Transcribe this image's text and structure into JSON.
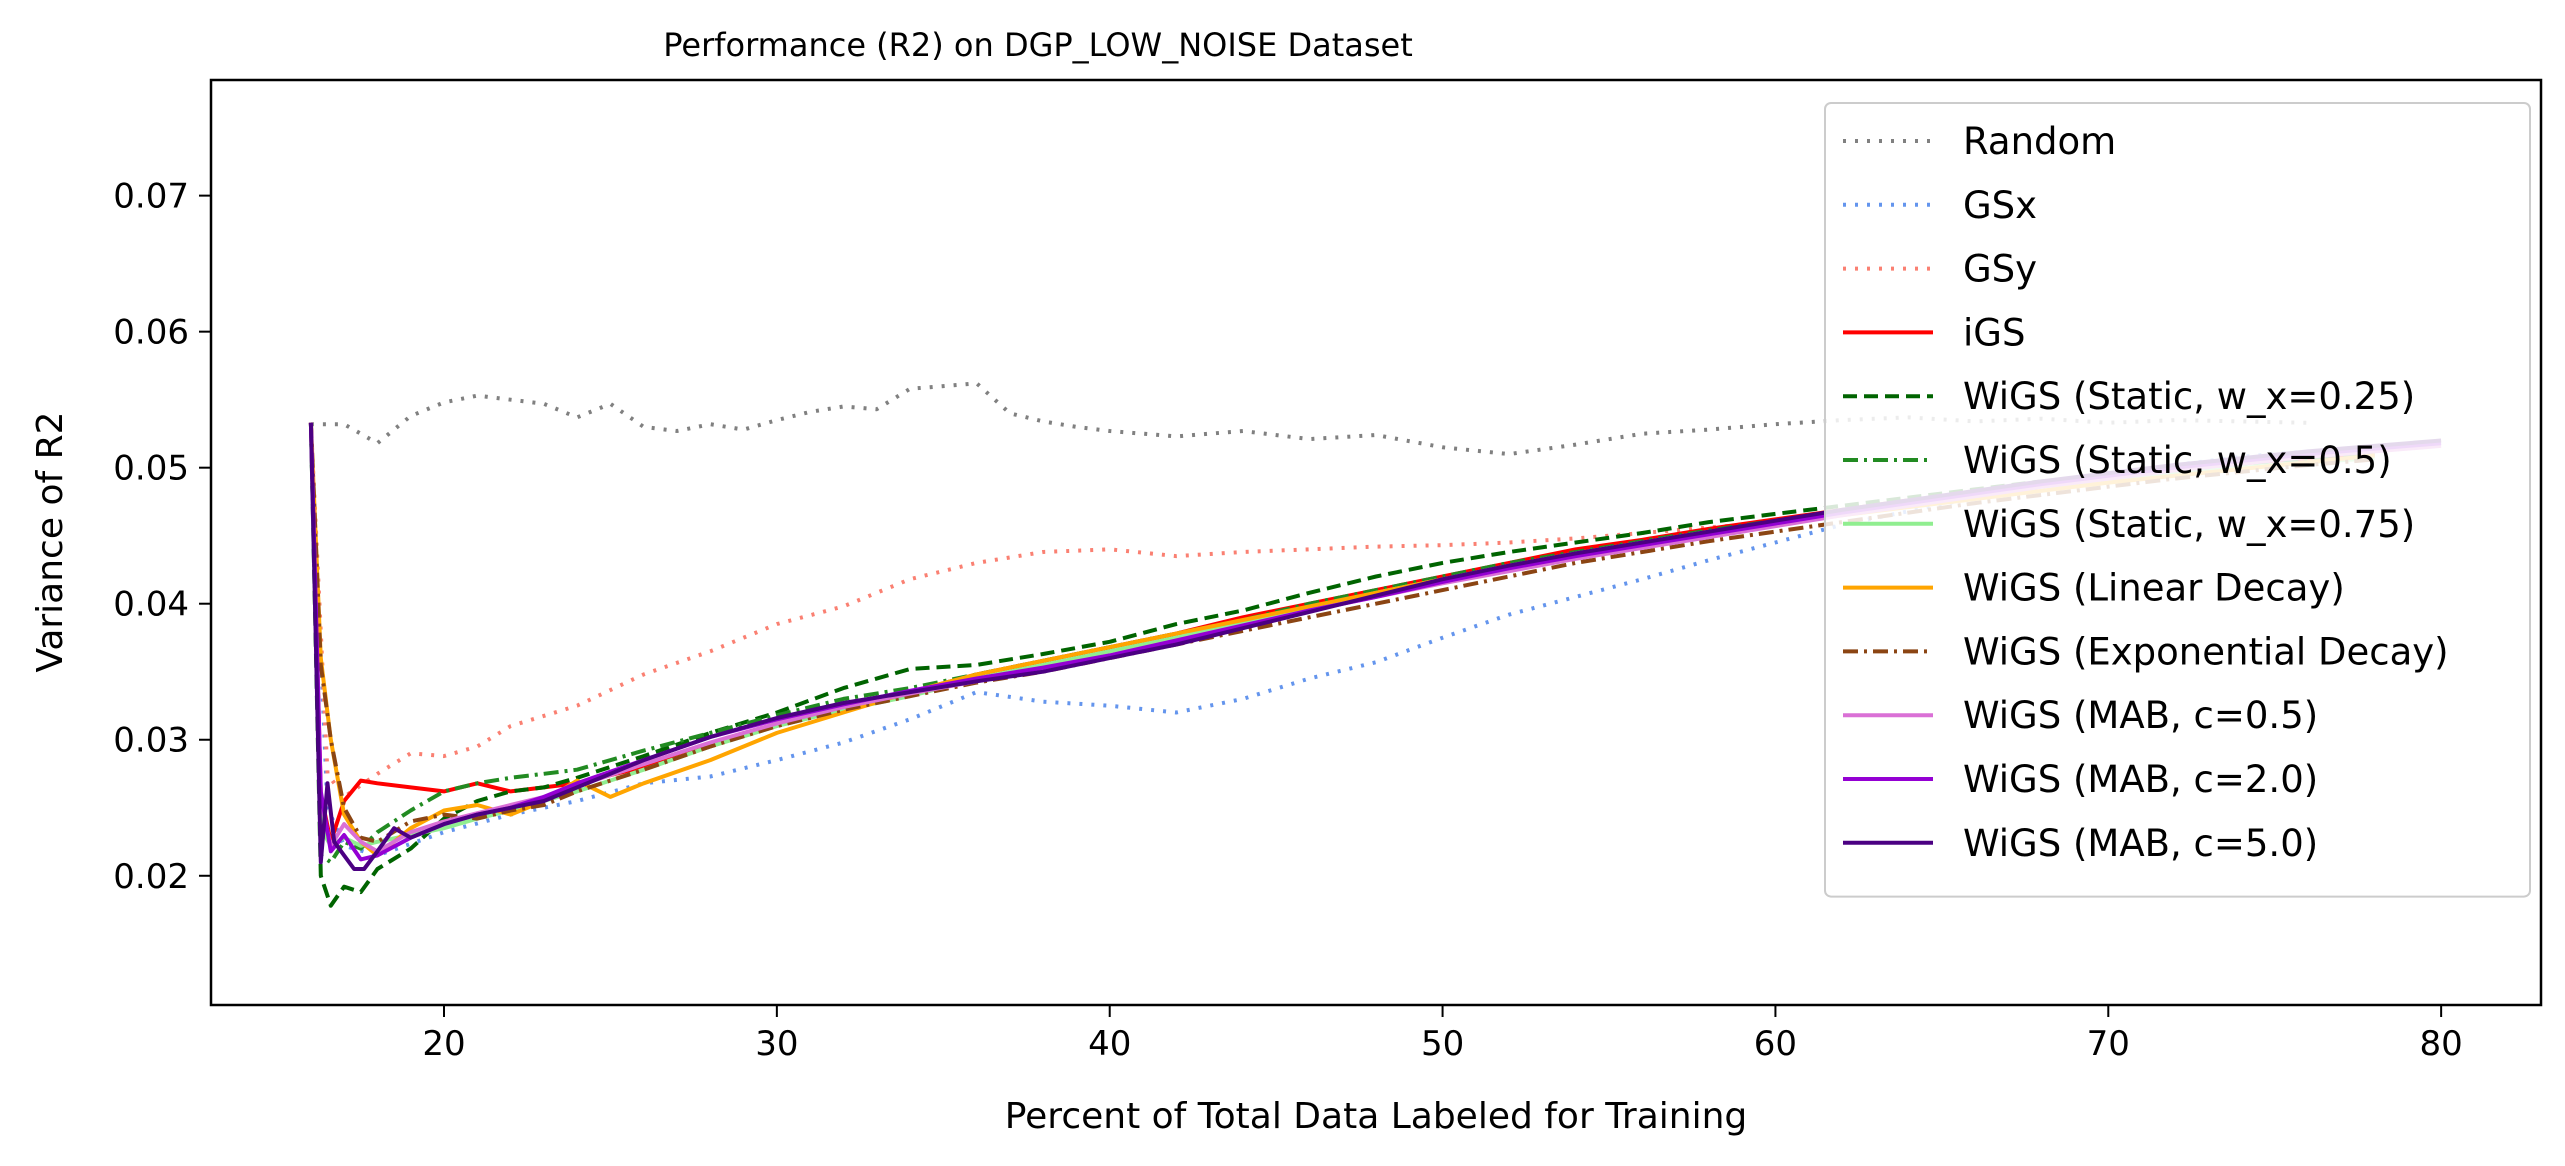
{
  "chart_data": {
    "type": "line",
    "title": "Performance (R2) on DGP_LOW_NOISE Dataset",
    "xlabel": "Percent of Total Data Labeled for Training",
    "ylabel": "Variance of R2",
    "xlim": [
      13,
      83
    ],
    "ylim": [
      0.0105,
      0.0785
    ],
    "xticks": [
      20,
      30,
      40,
      50,
      60,
      70,
      80
    ],
    "yticks": [
      0.02,
      0.03,
      0.04,
      0.05,
      0.06,
      0.07
    ],
    "xtick_labels": [
      "20",
      "30",
      "40",
      "50",
      "60",
      "70",
      "80"
    ],
    "ytick_labels": [
      "0.02",
      "0.03",
      "0.04",
      "0.05",
      "0.06",
      "0.07"
    ],
    "grid": false,
    "legend_position": "upper-right",
    "series": [
      {
        "name": "Random",
        "color": "#808080",
        "dash": "dotted",
        "x": [
          16,
          17,
          18,
          19,
          20,
          21,
          22,
          23,
          24,
          25,
          26,
          27,
          28,
          29,
          30,
          31,
          32,
          33,
          34,
          35,
          36,
          37,
          38,
          39,
          40,
          42,
          44,
          46,
          48,
          50,
          52,
          54,
          56,
          58,
          60,
          62,
          64,
          66,
          68,
          70,
          72,
          74,
          76
        ],
        "y": [
          0.0532,
          0.0532,
          0.0518,
          0.0538,
          0.0548,
          0.0553,
          0.055,
          0.0547,
          0.0537,
          0.0547,
          0.053,
          0.0527,
          0.0532,
          0.0528,
          0.0535,
          0.0541,
          0.0545,
          0.0543,
          0.0558,
          0.056,
          0.0562,
          0.054,
          0.0534,
          0.053,
          0.0527,
          0.0523,
          0.0527,
          0.0521,
          0.0524,
          0.0515,
          0.051,
          0.0517,
          0.0525,
          0.0528,
          0.0532,
          0.0535,
          0.0537,
          0.0534,
          0.0536,
          0.0533,
          0.0535,
          0.0534,
          0.0533
        ]
      },
      {
        "name": "GSx",
        "color": "#6495ED",
        "dash": "dotted",
        "x": [
          16,
          16.5,
          17,
          18,
          20,
          22,
          24,
          26,
          28,
          30,
          32,
          34,
          36,
          38,
          40,
          42,
          44,
          46,
          48,
          50,
          52,
          54,
          56,
          58,
          60,
          62,
          64,
          66,
          68,
          70,
          72,
          74,
          76,
          78
        ],
        "y": [
          0.0533,
          0.025,
          0.0222,
          0.0215,
          0.0232,
          0.0245,
          0.0255,
          0.0268,
          0.0273,
          0.0285,
          0.0298,
          0.0315,
          0.0335,
          0.0328,
          0.0325,
          0.032,
          0.033,
          0.0345,
          0.0357,
          0.0375,
          0.0392,
          0.0405,
          0.0418,
          0.0432,
          0.0445,
          0.0458,
          0.0468,
          0.0478,
          0.0487,
          0.0495,
          0.0502,
          0.0508,
          0.0512,
          0.0515
        ]
      },
      {
        "name": "GSy",
        "color": "#FA8072",
        "dash": "dotted",
        "x": [
          16,
          16.5,
          17,
          18,
          19,
          20,
          21,
          22,
          24,
          26,
          28,
          30,
          32,
          34,
          36,
          38,
          40,
          42,
          44,
          46,
          48,
          50,
          52,
          54,
          56,
          58,
          60,
          62,
          64,
          66,
          68,
          70,
          72,
          74,
          76,
          78
        ],
        "y": [
          0.0533,
          0.0275,
          0.0258,
          0.0275,
          0.029,
          0.0288,
          0.0295,
          0.031,
          0.0325,
          0.0348,
          0.0365,
          0.0385,
          0.0398,
          0.0418,
          0.043,
          0.0438,
          0.044,
          0.0435,
          0.0438,
          0.044,
          0.0442,
          0.0443,
          0.0445,
          0.0448,
          0.0452,
          0.0456,
          0.046,
          0.0466,
          0.0472,
          0.0478,
          0.0485,
          0.0492,
          0.0498,
          0.0505,
          0.051,
          0.0514
        ]
      },
      {
        "name": "iGS",
        "color": "#FF0000",
        "dash": "solid",
        "x": [
          16,
          16.3,
          16.6,
          17,
          17.5,
          18,
          19,
          20,
          21,
          22,
          23,
          24,
          26,
          28,
          30,
          32,
          34,
          36,
          38,
          40,
          42,
          44,
          46,
          48,
          50,
          52,
          54,
          56,
          58,
          60,
          62,
          64,
          66,
          68,
          70,
          72,
          74,
          76,
          78
        ],
        "y": [
          0.0533,
          0.026,
          0.0225,
          0.0255,
          0.027,
          0.0268,
          0.0265,
          0.0262,
          0.0268,
          0.0262,
          0.0265,
          0.0268,
          0.028,
          0.0295,
          0.0312,
          0.0325,
          0.0335,
          0.0348,
          0.0358,
          0.0368,
          0.0378,
          0.039,
          0.04,
          0.041,
          0.042,
          0.043,
          0.044,
          0.0447,
          0.0455,
          0.0462,
          0.0469,
          0.0476,
          0.0482,
          0.0488,
          0.0494,
          0.0499,
          0.0503,
          0.0507,
          0.051
        ]
      },
      {
        "name": "WiGS (Static, w_x=0.25)",
        "color": "#006400",
        "dash": "dashed",
        "x": [
          16,
          16.3,
          16.6,
          17,
          17.5,
          18,
          19,
          20,
          21,
          22,
          23,
          24,
          26,
          28,
          30,
          32,
          34,
          36,
          38,
          40,
          42,
          44,
          46,
          48,
          50,
          52,
          54,
          56,
          58,
          60,
          62,
          64,
          66,
          68,
          70,
          72,
          74,
          76,
          78
        ],
        "y": [
          0.0533,
          0.02,
          0.0178,
          0.0192,
          0.0188,
          0.0205,
          0.022,
          0.0242,
          0.0255,
          0.0262,
          0.0265,
          0.0272,
          0.0288,
          0.0305,
          0.032,
          0.0338,
          0.0352,
          0.0355,
          0.0363,
          0.0372,
          0.0385,
          0.0395,
          0.0408,
          0.042,
          0.043,
          0.0438,
          0.0445,
          0.0452,
          0.046,
          0.0466,
          0.0472,
          0.0478,
          0.0484,
          0.049,
          0.0495,
          0.05,
          0.0504,
          0.0508,
          0.0511
        ]
      },
      {
        "name": "WiGS (Static, w_x=0.5)",
        "color": "#228B22",
        "dash": "dashdot",
        "x": [
          16,
          16.3,
          16.6,
          17,
          17.5,
          18,
          19,
          20,
          21,
          22,
          23,
          24,
          26,
          28,
          30,
          32,
          34,
          36,
          38,
          40,
          42,
          44,
          46,
          48,
          50,
          52,
          54,
          56,
          58,
          60,
          62,
          64,
          66,
          68,
          70,
          72,
          74,
          76,
          78
        ],
        "y": [
          0.0533,
          0.0215,
          0.021,
          0.0225,
          0.022,
          0.0232,
          0.0248,
          0.0262,
          0.0268,
          0.0272,
          0.0275,
          0.0278,
          0.0292,
          0.0305,
          0.0318,
          0.033,
          0.0338,
          0.0348,
          0.0358,
          0.0368,
          0.0378,
          0.0388,
          0.04,
          0.041,
          0.042,
          0.043,
          0.0438,
          0.0446,
          0.0454,
          0.0461,
          0.0468,
          0.0475,
          0.0482,
          0.0488,
          0.0493,
          0.0498,
          0.0502,
          0.0506,
          0.0509
        ]
      },
      {
        "name": "WiGS (Static, w_x=0.75)",
        "color": "#90EE90",
        "dash": "solid",
        "x": [
          16,
          16.3,
          16.6,
          17,
          17.5,
          18,
          19,
          20,
          21,
          22,
          23,
          24,
          26,
          28,
          30,
          32,
          34,
          36,
          38,
          40,
          42,
          44,
          46,
          48,
          50,
          52,
          54,
          56,
          58,
          60,
          62,
          64,
          66,
          68,
          70,
          72,
          74,
          76,
          78
        ],
        "y": [
          0.0533,
          0.0235,
          0.0222,
          0.0228,
          0.0222,
          0.0225,
          0.023,
          0.0235,
          0.0242,
          0.0248,
          0.0255,
          0.0262,
          0.0278,
          0.0295,
          0.031,
          0.0322,
          0.0332,
          0.0345,
          0.0355,
          0.0365,
          0.0375,
          0.0386,
          0.0397,
          0.0408,
          0.0418,
          0.0428,
          0.0437,
          0.0445,
          0.0453,
          0.046,
          0.0467,
          0.0474,
          0.048,
          0.0486,
          0.0491,
          0.0496,
          0.05,
          0.0504,
          0.0507
        ]
      },
      {
        "name": "WiGS (Linear Decay)",
        "color": "#FFA500",
        "dash": "solid",
        "x": [
          16,
          16.3,
          16.6,
          17,
          17.5,
          18,
          19,
          20,
          21,
          22,
          23,
          24,
          25,
          26,
          28,
          30,
          32,
          34,
          36,
          38,
          40,
          42,
          44,
          46,
          48,
          50,
          52,
          54,
          56,
          58,
          60,
          62,
          64,
          66,
          68,
          70,
          72,
          74,
          76,
          78
        ],
        "y": [
          0.0533,
          0.036,
          0.03,
          0.0245,
          0.0225,
          0.0215,
          0.0235,
          0.0248,
          0.0252,
          0.0245,
          0.0255,
          0.027,
          0.0258,
          0.0268,
          0.0285,
          0.0305,
          0.032,
          0.0335,
          0.0348,
          0.0358,
          0.0368,
          0.0378,
          0.0388,
          0.0398,
          0.0408,
          0.0418,
          0.0427,
          0.0436,
          0.0444,
          0.0451,
          0.0458,
          0.0465,
          0.0471,
          0.0477,
          0.0483,
          0.0489,
          0.0494,
          0.0499,
          0.0504,
          0.0509
        ]
      },
      {
        "name": "WiGS (Exponential Decay)",
        "color": "#8B4513",
        "dash": "dashdot",
        "x": [
          16,
          16.3,
          16.6,
          17,
          17.5,
          18,
          19,
          20,
          21,
          22,
          23,
          24,
          26,
          28,
          30,
          32,
          34,
          36,
          38,
          40,
          42,
          44,
          46,
          48,
          50,
          52,
          54,
          56,
          58,
          60,
          62,
          64,
          66,
          68,
          70,
          72,
          74,
          76,
          78
        ],
        "y": [
          0.0533,
          0.0355,
          0.03,
          0.025,
          0.0228,
          0.0225,
          0.024,
          0.0245,
          0.0242,
          0.0248,
          0.0252,
          0.0262,
          0.0278,
          0.0295,
          0.031,
          0.0322,
          0.0332,
          0.0342,
          0.035,
          0.036,
          0.037,
          0.038,
          0.039,
          0.04,
          0.041,
          0.042,
          0.043,
          0.0438,
          0.0446,
          0.0453,
          0.046,
          0.0467,
          0.0474,
          0.048,
          0.0486,
          0.0492,
          0.0497,
          0.0502,
          0.0506
        ]
      },
      {
        "name": "WiGS (MAB, c=0.5)",
        "color": "#DA70D6",
        "dash": "solid",
        "x": [
          16,
          16.3,
          16.6,
          17,
          17.5,
          18,
          19,
          20,
          21,
          22,
          23,
          24,
          26,
          28,
          30,
          32,
          34,
          36,
          38,
          40,
          42,
          44,
          46,
          48,
          50,
          52,
          54,
          56,
          58,
          60,
          62,
          64,
          66,
          68,
          70,
          72,
          74,
          76,
          78,
          80
        ],
        "y": [
          0.0533,
          0.0255,
          0.0222,
          0.0238,
          0.0225,
          0.0218,
          0.0232,
          0.024,
          0.0246,
          0.0252,
          0.0258,
          0.0266,
          0.0282,
          0.0298,
          0.0312,
          0.0324,
          0.0334,
          0.0343,
          0.0352,
          0.0362,
          0.0373,
          0.0384,
          0.0395,
          0.0405,
          0.0415,
          0.0424,
          0.0433,
          0.0441,
          0.0449,
          0.0457,
          0.0465,
          0.0472,
          0.0479,
          0.0486,
          0.0492,
          0.0498,
          0.0503,
          0.0508,
          0.0512,
          0.0516
        ]
      },
      {
        "name": "WiGS (MAB, c=2.0)",
        "color": "#9400D3",
        "dash": "solid",
        "x": [
          16,
          16.3,
          16.6,
          17,
          17.5,
          18,
          19,
          20,
          21,
          22,
          23,
          24,
          26,
          28,
          30,
          32,
          34,
          36,
          38,
          40,
          42,
          44,
          46,
          48,
          50,
          52,
          54,
          56,
          58,
          60,
          62,
          64,
          66,
          68,
          70,
          72,
          74,
          76,
          78,
          80
        ],
        "y": [
          0.0533,
          0.0262,
          0.0218,
          0.023,
          0.0212,
          0.0215,
          0.0228,
          0.0238,
          0.0245,
          0.025,
          0.0258,
          0.0268,
          0.0285,
          0.0302,
          0.0315,
          0.0326,
          0.0336,
          0.0345,
          0.0353,
          0.0362,
          0.0373,
          0.0384,
          0.0395,
          0.0405,
          0.0416,
          0.0426,
          0.0435,
          0.0443,
          0.0451,
          0.0459,
          0.0467,
          0.0474,
          0.0481,
          0.0488,
          0.0494,
          0.05,
          0.0505,
          0.051,
          0.0514,
          0.0518
        ]
      },
      {
        "name": "WiGS (MAB, c=5.0)",
        "color": "#4B0082",
        "dash": "solid",
        "x": [
          16,
          16.3,
          16.5,
          16.7,
          17,
          17.3,
          17.6,
          18,
          18.5,
          19,
          20,
          21,
          22,
          23,
          24,
          25,
          26,
          28,
          30,
          32,
          34,
          36,
          38,
          40,
          42,
          44,
          46,
          48,
          50,
          52,
          54,
          56,
          58,
          60,
          62,
          64,
          66,
          68,
          70,
          72,
          74,
          76,
          78,
          80
        ],
        "y": [
          0.0533,
          0.021,
          0.0268,
          0.0225,
          0.0215,
          0.0205,
          0.0205,
          0.0218,
          0.0235,
          0.0228,
          0.0238,
          0.0245,
          0.025,
          0.0255,
          0.0265,
          0.0275,
          0.0285,
          0.0302,
          0.0316,
          0.0327,
          0.0335,
          0.0343,
          0.035,
          0.036,
          0.037,
          0.0382,
          0.0394,
          0.0406,
          0.0418,
          0.0428,
          0.0437,
          0.0445,
          0.0453,
          0.0461,
          0.0469,
          0.0476,
          0.0483,
          0.049,
          0.0496,
          0.0502,
          0.0507,
          0.0512,
          0.0516,
          0.052
        ]
      }
    ]
  }
}
